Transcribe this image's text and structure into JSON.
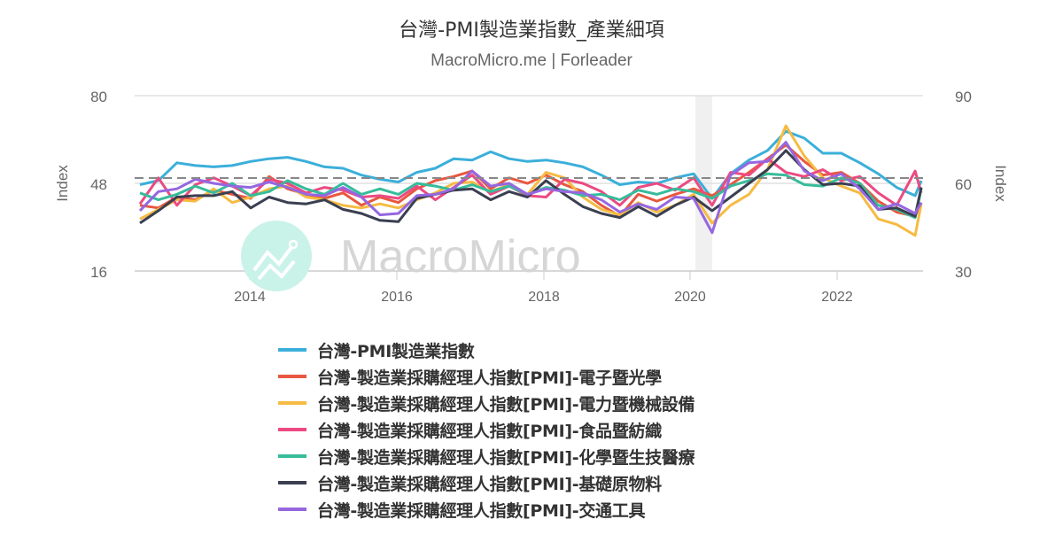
{
  "header": {
    "title": "台灣-PMI製造業指數_產業細項",
    "subtitle": "MacroMicro.me | Forleader"
  },
  "watermark": {
    "text": "MacroMicro",
    "logo": "macromicro-logo-icon"
  },
  "axes": {
    "left": {
      "label": "Index",
      "ticks": [
        "80",
        "48",
        "16"
      ]
    },
    "right": {
      "label": "Index",
      "ticks": [
        "90",
        "60",
        "30"
      ]
    },
    "x": {
      "ticks": [
        "2014",
        "2016",
        "2018",
        "2020",
        "2022"
      ]
    }
  },
  "legend": {
    "items": [
      {
        "label": "台灣-PMI製造業指數",
        "color": "#3bafda"
      },
      {
        "label": "台灣-製造業採購經理人指數[PMI]-電子暨光學",
        "color": "#e9573f"
      },
      {
        "label": "台灣-製造業採購經理人指數[PMI]-電力暨機械設備",
        "color": "#f6bb42"
      },
      {
        "label": "台灣-製造業採購經理人指數[PMI]-食品暨紡織",
        "color": "#ec4a82"
      },
      {
        "label": "台灣-製造業採購經理人指數[PMI]-化學暨生技醫療",
        "color": "#37bc9b"
      },
      {
        "label": "台灣-製造業採購經理人指數[PMI]-基礎原物料",
        "color": "#3a3f51"
      },
      {
        "label": "台灣-製造業採購經理人指數[PMI]-交通工具",
        "color": "#9567e0"
      }
    ]
  },
  "chart_data": {
    "type": "line",
    "title": "台灣-PMI製造業指數_產業細項",
    "subtitle": "MacroMicro.me | Forleader",
    "xlabel": "",
    "ylabel": "Index",
    "ylabel_right": "Index",
    "ylim": [
      16,
      80
    ],
    "ylim_right": [
      30,
      90
    ],
    "x_ticks": [
      "2014",
      "2016",
      "2018",
      "2020",
      "2022"
    ],
    "x_range": [
      "2012-07",
      "2023-02"
    ],
    "reference_line": {
      "value": 50,
      "style": "dashed",
      "axis": "left"
    },
    "shaded_region": {
      "from": "2020-02",
      "to": "2020-04",
      "color": "#f0f0f0"
    },
    "grid": true,
    "legend_position": "bottom",
    "x": [
      "2012-07",
      "2012-10",
      "2013-01",
      "2013-04",
      "2013-07",
      "2013-10",
      "2014-01",
      "2014-04",
      "2014-07",
      "2014-10",
      "2015-01",
      "2015-04",
      "2015-07",
      "2015-10",
      "2016-01",
      "2016-04",
      "2016-07",
      "2016-10",
      "2017-01",
      "2017-04",
      "2017-07",
      "2017-10",
      "2018-01",
      "2018-04",
      "2018-07",
      "2018-10",
      "2019-01",
      "2019-04",
      "2019-07",
      "2019-10",
      "2020-01",
      "2020-04",
      "2020-07",
      "2020-10",
      "2021-01",
      "2021-04",
      "2021-07",
      "2021-10",
      "2022-01",
      "2022-04",
      "2022-07",
      "2022-10",
      "2023-01",
      "2023-02"
    ],
    "series": [
      {
        "name": "台灣-PMI製造業指數",
        "color": "#3bafda",
        "values": [
          47.5,
          49.0,
          55.5,
          54.5,
          54.0,
          54.5,
          56.0,
          57.0,
          57.5,
          56.0,
          54.0,
          53.5,
          51.0,
          49.5,
          48.5,
          52.0,
          53.5,
          57.0,
          56.5,
          59.5,
          57.0,
          56.0,
          56.5,
          55.5,
          54.0,
          51.0,
          47.5,
          48.5,
          48.0,
          50.0,
          51.5,
          42.5,
          51.5,
          56.5,
          60.0,
          67.0,
          64.5,
          59.0,
          59.0,
          55.5,
          51.5,
          46.5,
          43.5,
          49.0
        ]
      },
      {
        "name": "台灣-製造業採購經理人指數[PMI]-電子暨光學",
        "color": "#e9573f",
        "values": [
          40.0,
          39.0,
          43.0,
          42.0,
          45.5,
          44.0,
          42.5,
          50.5,
          46.0,
          44.0,
          42.5,
          44.5,
          40.0,
          43.0,
          41.0,
          46.0,
          49.0,
          50.5,
          52.5,
          46.0,
          50.0,
          48.0,
          51.0,
          47.5,
          45.0,
          40.0,
          36.0,
          44.0,
          41.5,
          44.0,
          46.0,
          43.5,
          47.5,
          52.0,
          57.0,
          62.0,
          56.0,
          51.0,
          52.0,
          48.0,
          41.5,
          37.5,
          36.0,
          41.0
        ]
      },
      {
        "name": "台灣-製造業採購經理人指數[PMI]-電力暨機械設備",
        "color": "#f6bb42",
        "values": [
          35.0,
          38.5,
          42.0,
          41.5,
          46.0,
          41.0,
          43.0,
          46.0,
          47.0,
          43.0,
          42.0,
          40.0,
          39.0,
          40.5,
          39.0,
          42.0,
          44.5,
          48.0,
          48.5,
          45.0,
          47.5,
          44.0,
          52.0,
          50.0,
          43.0,
          38.5,
          36.5,
          41.0,
          37.5,
          40.0,
          44.0,
          33.5,
          40.0,
          44.0,
          53.0,
          69.0,
          58.0,
          50.0,
          47.0,
          44.5,
          35.0,
          33.0,
          29.0,
          40.5
        ]
      },
      {
        "name": "台灣-製造業採購經理人指數[PMI]-食品暨紡織",
        "color": "#ec4a82",
        "values": [
          40.5,
          50.0,
          40.0,
          47.5,
          50.0,
          47.0,
          43.5,
          49.5,
          48.0,
          44.5,
          46.5,
          45.5,
          43.0,
          43.5,
          42.5,
          47.0,
          42.0,
          46.5,
          51.0,
          44.0,
          47.0,
          43.5,
          43.0,
          49.5,
          48.0,
          45.0,
          40.0,
          46.5,
          48.0,
          45.5,
          50.0,
          40.0,
          52.0,
          51.0,
          57.0,
          52.0,
          50.5,
          53.0,
          49.0,
          50.5,
          44.5,
          40.0,
          52.5,
          44.5
        ]
      },
      {
        "name": "台灣-製造業採購經理人指數[PMI]-化學暨生技醫療",
        "color": "#37bc9b",
        "values": [
          44.5,
          42.0,
          44.0,
          47.0,
          44.5,
          48.0,
          43.5,
          45.0,
          49.0,
          46.0,
          44.0,
          48.0,
          44.0,
          46.0,
          44.0,
          48.0,
          47.0,
          45.5,
          47.5,
          45.0,
          47.0,
          44.0,
          46.5,
          45.5,
          43.5,
          44.0,
          42.0,
          45.5,
          44.0,
          46.0,
          45.0,
          42.5,
          47.0,
          49.0,
          51.5,
          51.0,
          47.5,
          47.0,
          50.0,
          48.0,
          40.0,
          38.5,
          35.5,
          46.0
        ]
      },
      {
        "name": "台灣-製造業採購經理人指數[PMI]-基礎原物料",
        "color": "#3a3f51",
        "values": [
          33.5,
          38.0,
          43.0,
          43.5,
          43.5,
          45.0,
          39.0,
          43.0,
          41.0,
          40.5,
          42.0,
          38.5,
          37.0,
          34.5,
          34.0,
          42.5,
          44.0,
          45.5,
          46.0,
          42.0,
          45.0,
          43.0,
          49.0,
          44.0,
          39.5,
          37.0,
          35.5,
          39.5,
          36.0,
          40.0,
          43.0,
          38.0,
          43.0,
          48.0,
          53.0,
          60.0,
          53.0,
          47.5,
          48.0,
          47.0,
          38.5,
          39.0,
          36.0,
          46.5
        ]
      },
      {
        "name": "台灣-製造業採購經理人指數[PMI]-交通工具",
        "color": "#9567e0",
        "values": [
          38.0,
          45.0,
          46.0,
          49.5,
          48.0,
          47.0,
          46.5,
          48.5,
          46.5,
          44.0,
          43.5,
          46.5,
          43.0,
          36.5,
          37.0,
          43.5,
          44.0,
          46.0,
          52.5,
          47.0,
          48.0,
          44.0,
          46.0,
          45.0,
          44.5,
          42.0,
          37.5,
          40.5,
          38.5,
          43.0,
          42.5,
          30.0,
          51.0,
          55.5,
          56.0,
          63.0,
          52.5,
          49.0,
          51.5,
          46.0,
          38.5,
          40.5,
          37.0,
          41.0
        ]
      }
    ]
  }
}
